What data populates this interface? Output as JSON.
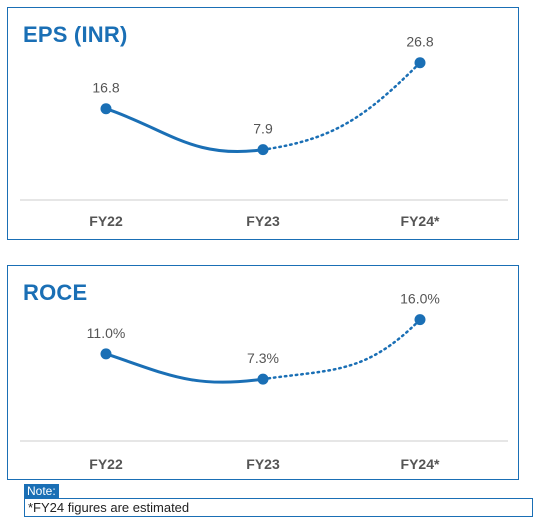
{
  "colors": {
    "accent": "#1a6fb5",
    "label": "#555555",
    "axis_text": "#555555",
    "baseline": "#cccccc"
  },
  "chart_data": [
    {
      "type": "line",
      "title": "EPS (INR)",
      "categories": [
        "FY22",
        "FY23",
        "FY24*"
      ],
      "values": [
        16.8,
        7.9,
        26.8
      ],
      "value_labels": [
        "16.8",
        "7.9",
        "26.8"
      ],
      "ylim": [
        0,
        30
      ],
      "estimated_from_index": 1,
      "grid": false,
      "legend": "none"
    },
    {
      "type": "line",
      "title": "ROCE",
      "categories": [
        "FY22",
        "FY23",
        "FY24*"
      ],
      "values": [
        11.0,
        7.3,
        16.0
      ],
      "value_labels": [
        "11.0%",
        "7.3%",
        "16.0%"
      ],
      "ylim": [
        0,
        18
      ],
      "estimated_from_index": 1,
      "grid": false,
      "legend": "none"
    }
  ],
  "note": {
    "label": "Note:",
    "text": "*FY24 figures are estimated"
  }
}
